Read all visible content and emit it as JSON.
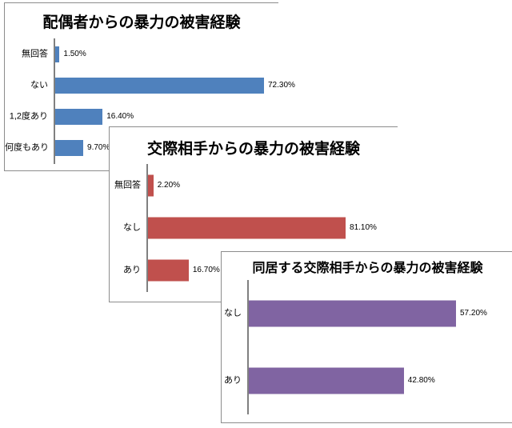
{
  "canvas": {
    "background": "#ffffff",
    "chart_border_color": "#8c8c8c",
    "axis_color": "#808080"
  },
  "chart_data": [
    {
      "type": "bar",
      "orientation": "horizontal",
      "title": "配偶者からの暴力の被害経験",
      "categories": [
        "無回答",
        "ない",
        "1,2度あり",
        "何度もあり"
      ],
      "values": [
        1.5,
        72.3,
        16.4,
        9.7
      ],
      "data_labels": [
        "1.50%",
        "72.30%",
        "16.40%",
        "9.70%"
      ],
      "bar_color": "#4f81bd",
      "xlabel": "",
      "ylabel": "",
      "legend": "none",
      "grid": false,
      "value_axis_visible": false
    },
    {
      "type": "bar",
      "orientation": "horizontal",
      "title": "交際相手からの暴力の被害経験",
      "categories": [
        "無回答",
        "なし",
        "あり"
      ],
      "values": [
        2.2,
        81.1,
        16.7
      ],
      "data_labels": [
        "2.20%",
        "81.10%",
        "16.70%"
      ],
      "bar_color": "#c0504d",
      "xlabel": "",
      "ylabel": "",
      "legend": "none",
      "grid": false,
      "value_axis_visible": false
    },
    {
      "type": "bar",
      "orientation": "horizontal",
      "title": "同居する交際相手からの暴力の被害経験",
      "categories": [
        "なし",
        "あり"
      ],
      "values": [
        57.2,
        42.8
      ],
      "data_labels": [
        "57.20%",
        "42.80%"
      ],
      "bar_color": "#8064a2",
      "xlabel": "",
      "ylabel": "",
      "legend": "none",
      "grid": false,
      "value_axis_visible": false
    }
  ]
}
